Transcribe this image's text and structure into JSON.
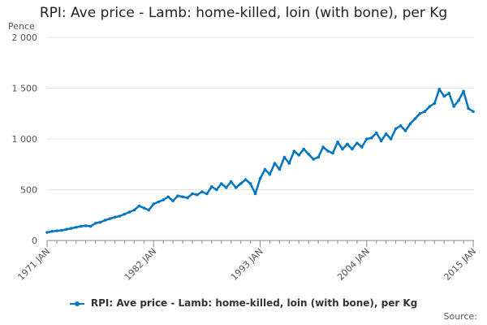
{
  "chart_data": {
    "type": "line",
    "title": "RPI: Ave price - Lamb: home-killed, loin (with bone), per Kg",
    "ylabel": "Pence",
    "xlabel": "",
    "ylim": [
      0,
      2000
    ],
    "y_ticks": [
      0,
      500,
      1000,
      1500,
      2000
    ],
    "y_tick_labels": [
      "0",
      "500",
      "1 000",
      "1 500",
      "2 000"
    ],
    "xlim": [
      1971,
      2015.08
    ],
    "x_ticks": [
      1971,
      1982,
      1993,
      2004,
      2015
    ],
    "x_tick_labels": [
      "1971 JAN",
      "1982 JAN",
      "1993 JAN",
      "2004 JAN",
      "2015 JAN"
    ],
    "gridlines": true,
    "legend_position": "bottom-center",
    "color": "#0076c0",
    "series": [
      {
        "name": "RPI: Ave price - Lamb: home-killed, loin (with bone), per Kg",
        "x": [
          1971,
          1971.5,
          1972,
          1972.5,
          1973,
          1973.5,
          1974,
          1974.5,
          1975,
          1975.5,
          1976,
          1976.5,
          1977,
          1977.5,
          1978,
          1978.5,
          1979,
          1979.5,
          1980,
          1980.5,
          1981,
          1981.5,
          1982,
          1982.5,
          1983,
          1983.5,
          1984,
          1984.5,
          1985,
          1985.5,
          1986,
          1986.5,
          1987,
          1987.5,
          1988,
          1988.5,
          1989,
          1989.5,
          1990,
          1990.5,
          1991,
          1991.5,
          1992,
          1992.5,
          1993,
          1993.5,
          1994,
          1994.5,
          1995,
          1995.5,
          1996,
          1996.5,
          1997,
          1997.5,
          1998,
          1998.5,
          1999,
          1999.5,
          2000,
          2000.5,
          2001,
          2001.5,
          2002,
          2002.5,
          2003,
          2003.5,
          2004,
          2004.5,
          2005,
          2005.5,
          2006,
          2006.5,
          2007,
          2007.5,
          2008,
          2008.5,
          2009,
          2009.5,
          2010,
          2010.5,
          2011,
          2011.5,
          2012,
          2012.5,
          2013,
          2013.5,
          2014,
          2014.5,
          2015
        ],
        "values": [
          80,
          90,
          95,
          100,
          110,
          120,
          130,
          140,
          145,
          140,
          170,
          180,
          200,
          215,
          230,
          240,
          260,
          280,
          300,
          340,
          320,
          300,
          360,
          380,
          400,
          430,
          390,
          440,
          430,
          420,
          460,
          450,
          480,
          460,
          530,
          500,
          560,
          520,
          580,
          520,
          560,
          600,
          560,
          460,
          610,
          700,
          650,
          760,
          700,
          820,
          760,
          880,
          840,
          900,
          850,
          800,
          820,
          920,
          880,
          860,
          970,
          900,
          950,
          900,
          960,
          920,
          1000,
          1010,
          1060,
          980,
          1050,
          1000,
          1100,
          1130,
          1080,
          1150,
          1200,
          1250,
          1270,
          1320,
          1350,
          1490,
          1420,
          1450,
          1320,
          1380,
          1470,
          1300,
          1270
        ]
      }
    ]
  },
  "source_label": "Source:"
}
